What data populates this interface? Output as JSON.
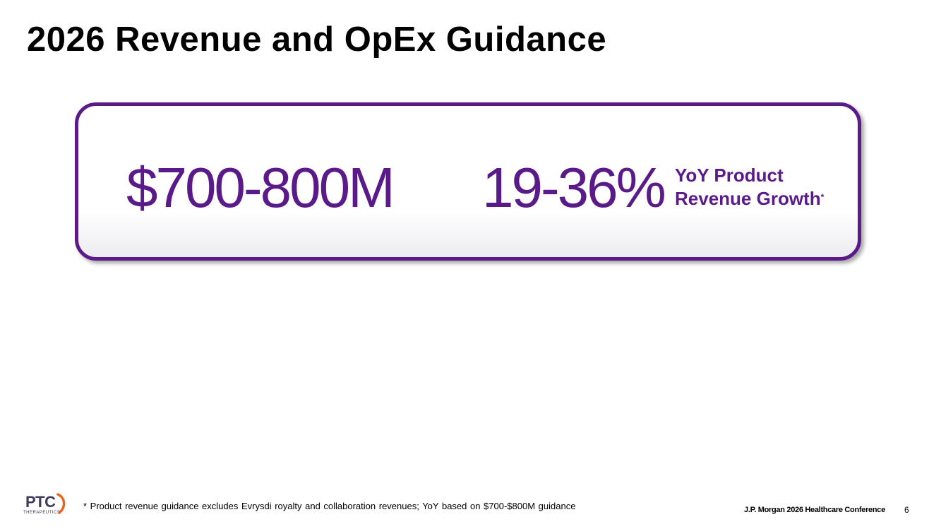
{
  "slide": {
    "title": "2026 Revenue and OpEx Guidance",
    "page_number": "6"
  },
  "guidance": {
    "revenue_range": "$700-800M",
    "growth_range": "19-36%",
    "growth_label_line1": "YoY Product",
    "growth_label_line2": "Revenue Growth",
    "footnote_marker": "*"
  },
  "footer": {
    "logo_text": "PTC",
    "logo_subtext": "THERAPEUTICS",
    "footnote": "* Product revenue guidance excludes Evrysdi royalty and collaboration revenues; YoY based on $700-$800M guidance",
    "conference": "J.P. Morgan 2026 Healthcare Conference"
  },
  "colors": {
    "accent": "#5b1a89",
    "logo": "#3f3a5c",
    "logo_arc": "#e8641c"
  }
}
